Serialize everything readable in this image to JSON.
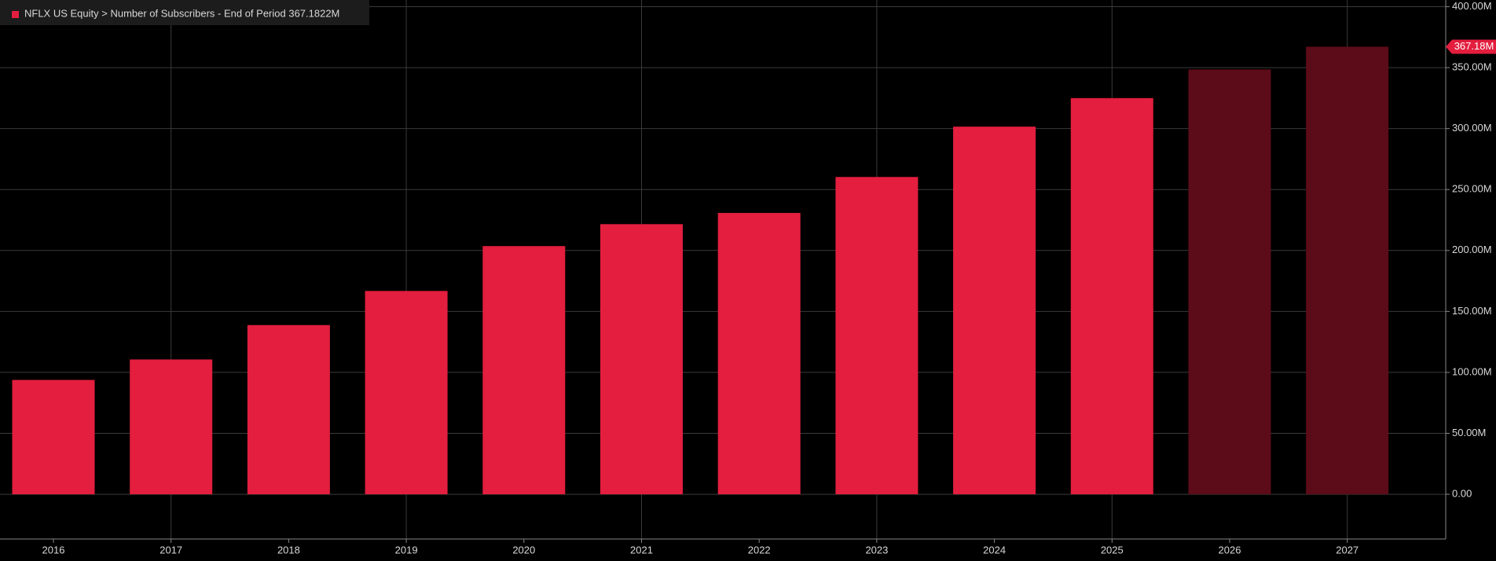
{
  "chart_data": {
    "type": "bar",
    "legend": "NFLX US Equity > Number of Subscribers - End of Period 367.1822M",
    "categories": [
      "2016",
      "2017",
      "2018",
      "2019",
      "2020",
      "2021",
      "2022",
      "2023",
      "2024",
      "2025",
      "2026",
      "2027"
    ],
    "values": [
      93.8,
      110.6,
      138.8,
      166.8,
      203.6,
      221.6,
      230.8,
      260.3,
      301.6,
      325.0,
      348.5,
      367.1822
    ],
    "value_labels": [
      null,
      null,
      null,
      null,
      null,
      null,
      null,
      null,
      null,
      null,
      null,
      "367.18M"
    ],
    "bar_colors": [
      "#e31e3e",
      "#e31e3e",
      "#e31e3e",
      "#e31e3e",
      "#e31e3e",
      "#e31e3e",
      "#e31e3e",
      "#e31e3e",
      "#e31e3e",
      "#e31e3e",
      "#5c0c18",
      "#5c0c18"
    ],
    "ylim": [
      -36.7,
      405.5
    ],
    "yticks": [
      {
        "value": 0,
        "label": "0.00"
      },
      {
        "value": 50,
        "label": "50.00M"
      },
      {
        "value": 100,
        "label": "100.00M"
      },
      {
        "value": 150,
        "label": "150.00M"
      },
      {
        "value": 200,
        "label": "200.00M"
      },
      {
        "value": 250,
        "label": "250.00M"
      },
      {
        "value": 300,
        "label": "300.00M"
      },
      {
        "value": 350,
        "label": "350.00M"
      },
      {
        "value": 400,
        "label": "400.00M"
      }
    ],
    "grid": true
  }
}
